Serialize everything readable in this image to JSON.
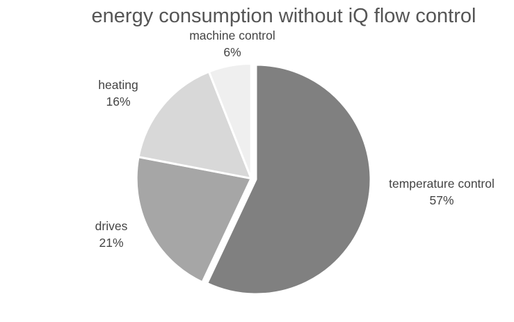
{
  "chart_data": {
    "type": "pie",
    "title": "energy consumption without iQ flow control",
    "slices": [
      {
        "label": "temperature control",
        "value": 57,
        "display": "57%",
        "color": "#808080",
        "exploded": false
      },
      {
        "label": "drives",
        "value": 21,
        "display": "21%",
        "color": "#a6a6a6",
        "exploded": true
      },
      {
        "label": "heating",
        "value": 16,
        "display": "16%",
        "color": "#d8d8d8",
        "exploded": true
      },
      {
        "label": "machine control",
        "value": 6,
        "display": "6%",
        "color": "#efefef",
        "exploded": true
      }
    ],
    "start": "12 o'clock",
    "direction": "clockwise",
    "legend": "none",
    "data_labels": "outside"
  }
}
